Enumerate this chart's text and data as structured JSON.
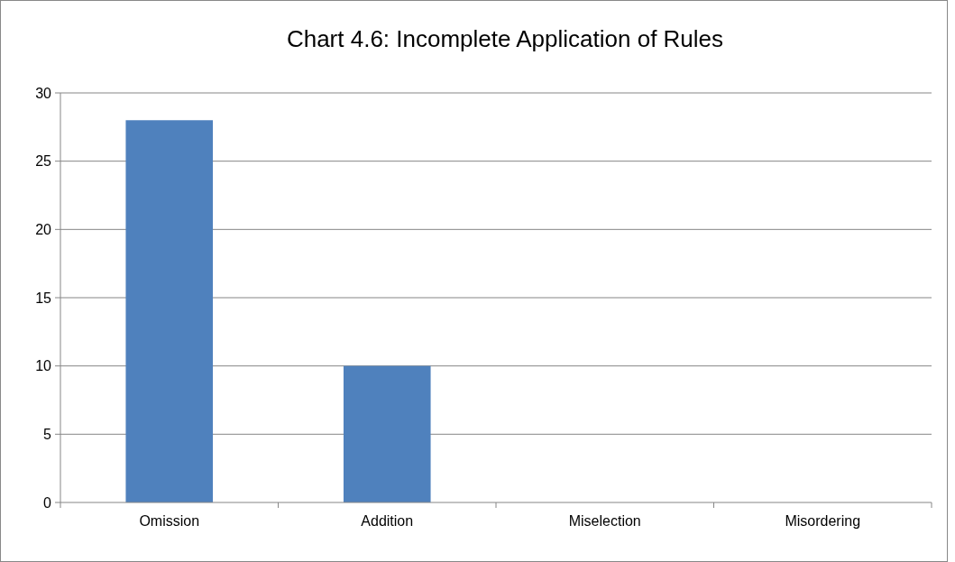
{
  "chart_data": {
    "type": "bar",
    "title": "Chart 4.6: Incomplete Application of Rules",
    "categories": [
      "Omission",
      "Addition",
      "Miselection",
      "Misordering"
    ],
    "values": [
      28,
      10,
      0,
      0
    ],
    "color": "#4f81bd",
    "ylim": [
      0,
      30
    ],
    "yticks": [
      0,
      5,
      10,
      15,
      20,
      25,
      30
    ],
    "grid": "y"
  }
}
